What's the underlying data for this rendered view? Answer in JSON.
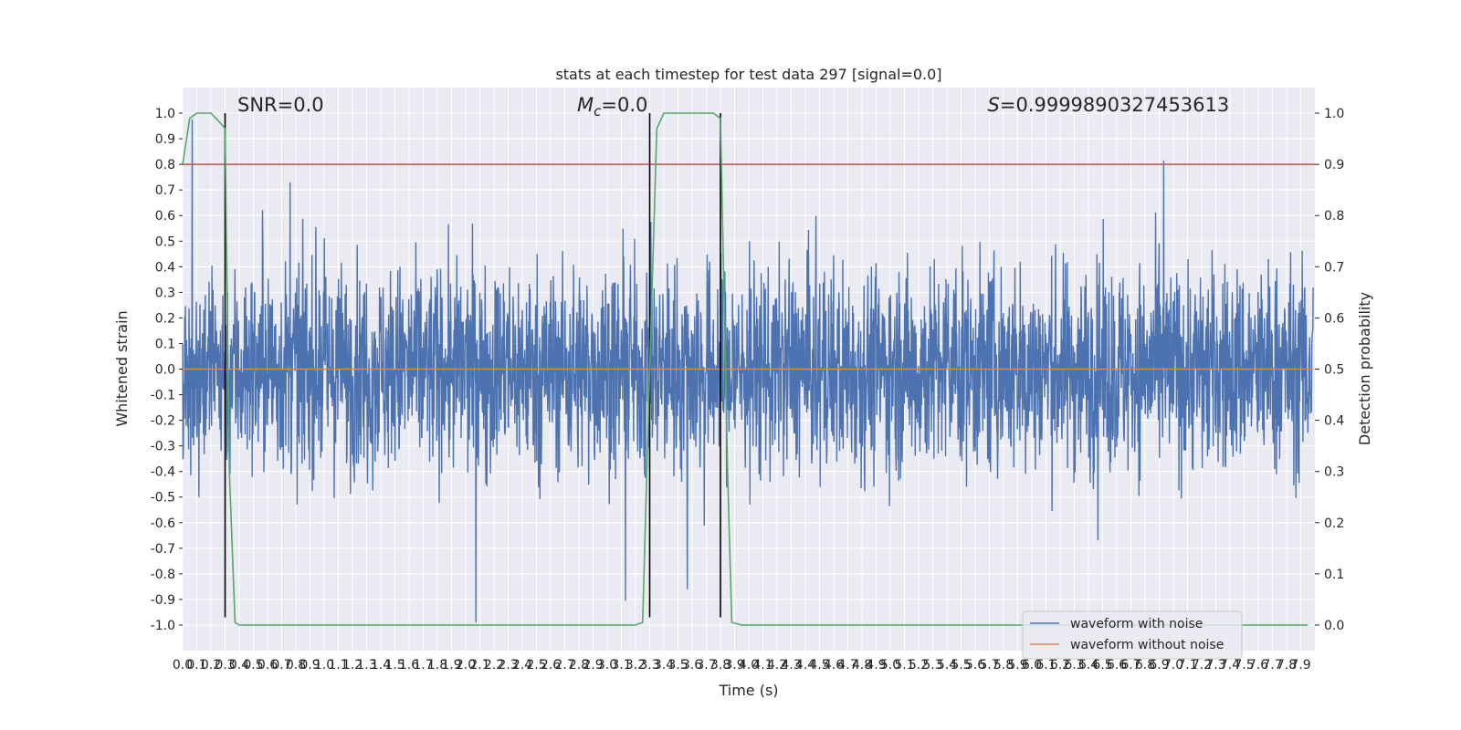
{
  "chart_data": {
    "type": "line",
    "title": "stats at each timestep for test data 297 [signal=0.0]",
    "xlabel": "Time (s)",
    "ylabel": "Whitened strain",
    "y2label": "Detection probability",
    "xlim": [
      0.0,
      8.0
    ],
    "ylim": [
      -1.1,
      1.1
    ],
    "y2lim": [
      -0.05,
      1.05
    ],
    "x_ticks": [
      0.0,
      0.1,
      0.2,
      0.3,
      0.4,
      0.5,
      0.6,
      0.7,
      0.8,
      0.9,
      1.0,
      1.1,
      1.2,
      1.3,
      1.4,
      1.5,
      1.6,
      1.7,
      1.8,
      1.9,
      2.0,
      2.1,
      2.2,
      2.3,
      2.4,
      2.5,
      2.6,
      2.7,
      2.8,
      2.9,
      3.0,
      3.1,
      3.2,
      3.3,
      3.4,
      3.5,
      3.6,
      3.7,
      3.8,
      3.9,
      4.0,
      4.1,
      4.2,
      4.3,
      4.4,
      4.5,
      4.6,
      4.7,
      4.8,
      4.9,
      5.0,
      5.1,
      5.2,
      5.3,
      5.4,
      5.5,
      5.6,
      5.7,
      5.8,
      5.9,
      6.0,
      6.1,
      6.2,
      6.3,
      6.4,
      6.5,
      6.6,
      6.7,
      6.8,
      6.9,
      7.0,
      7.1,
      7.2,
      7.3,
      7.4,
      7.5,
      7.6,
      7.7,
      7.8,
      7.9
    ],
    "y_ticks": [
      -1.0,
      -0.9,
      -0.8,
      -0.7,
      -0.6,
      -0.5,
      -0.4,
      -0.3,
      -0.2,
      -0.1,
      0.0,
      0.1,
      0.2,
      0.3,
      0.4,
      0.5,
      0.6,
      0.7,
      0.8,
      0.9,
      1.0
    ],
    "y2_ticks": [
      0.0,
      0.1,
      0.2,
      0.3,
      0.4,
      0.5,
      0.6,
      0.7,
      0.8,
      0.9,
      1.0
    ],
    "annotations": [
      {
        "text": "SNR=0.0",
        "x": 0.2
      },
      {
        "text": "=0.0",
        "math_prefix": "M",
        "math_sub": "c",
        "x": 2.6
      },
      {
        "text": "=0.9999890327453613",
        "math_prefix": "S",
        "x": 5.5
      }
    ],
    "threshold": {
      "y2": 0.9,
      "color": "#c44e52"
    },
    "vertical_lines": [
      0.3,
      3.3,
      3.8
    ],
    "series": [
      {
        "name": "waveform with noise",
        "color": "#4c72b0",
        "kind": "noise",
        "peak_envelope": 0.55
      },
      {
        "name": "waveform without noise",
        "color": "#dd8452",
        "kind": "flat",
        "value": 0.0
      },
      {
        "color": "#55a868",
        "axis": "y2",
        "kind": "probability",
        "points": [
          [
            0.0,
            0.9
          ],
          [
            0.05,
            0.99
          ],
          [
            0.1,
            1.0
          ],
          [
            0.2,
            1.0
          ],
          [
            0.27,
            0.98
          ],
          [
            0.3,
            0.97
          ],
          [
            0.33,
            0.3
          ],
          [
            0.37,
            0.005
          ],
          [
            0.4,
            0.0
          ],
          [
            0.6,
            0.0
          ],
          [
            1.0,
            0.0
          ],
          [
            2.0,
            0.0
          ],
          [
            3.0,
            0.0
          ],
          [
            3.2,
            0.0
          ],
          [
            3.25,
            0.005
          ],
          [
            3.3,
            0.5
          ],
          [
            3.35,
            0.97
          ],
          [
            3.4,
            1.0
          ],
          [
            3.6,
            1.0
          ],
          [
            3.75,
            1.0
          ],
          [
            3.8,
            0.99
          ],
          [
            3.85,
            0.3
          ],
          [
            3.88,
            0.005
          ],
          [
            3.95,
            0.0
          ],
          [
            4.3,
            0.0
          ],
          [
            5.0,
            0.0
          ],
          [
            6.0,
            0.0
          ],
          [
            7.0,
            0.0
          ],
          [
            7.95,
            0.0
          ]
        ]
      }
    ],
    "grid": true,
    "legend_position": "lower-right"
  }
}
